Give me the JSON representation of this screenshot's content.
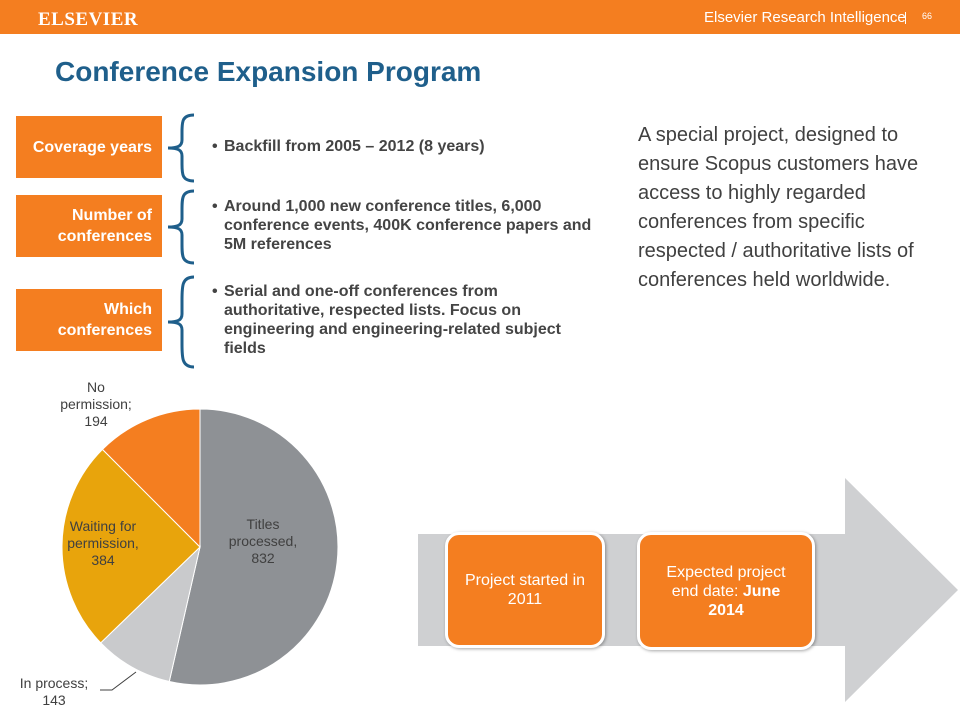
{
  "header": {
    "logo": "ELSEVIER",
    "brand": "Elsevier Research Intelligence",
    "page_number": "66"
  },
  "slide": {
    "title": "Conference Expansion Program",
    "rows": [
      {
        "label": "Coverage years",
        "bullet": "Backfill from 2005 – 2012 (8 years)"
      },
      {
        "label": "Number of conferences",
        "bullet": "Around 1,000 new conference titles, 6,000 conference events, 400K conference papers and 5M references"
      },
      {
        "label": "Which conferences",
        "bullet": "Serial and one-off conferences from authoritative, respected lists. Focus on engineering and engineering-related subject fields"
      }
    ],
    "description": "A special project, designed to ensure Scopus customers have access to highly regarded conferences from specific respected / authoritative lists of conferences held worldwide.",
    "bullet_char": "•"
  },
  "chart_data": {
    "type": "pie",
    "slices": [
      {
        "label": "Titles processed",
        "value": 832,
        "color": "#8e9195"
      },
      {
        "label": "In process",
        "value": 143,
        "color": "#c9cacc"
      },
      {
        "label": "Waiting for permission",
        "value": 384,
        "color": "#e8a40c"
      },
      {
        "label": "No permission",
        "value": 194,
        "color": "#f47e20"
      }
    ],
    "labels_text": {
      "titles": [
        "Titles",
        "processed,",
        "832"
      ],
      "in_process": [
        "In process;",
        "143"
      ],
      "waiting": [
        "Waiting for",
        "permission,",
        "384"
      ],
      "no_permission": [
        "No",
        "permission;",
        "194"
      ]
    }
  },
  "timeline": {
    "milestone1": "Project started in 2011",
    "milestone2_prefix": "Expected project end date: ",
    "milestone2_bold": "June 2014"
  },
  "colors": {
    "accent": "#f47e20",
    "title": "#1f5f8b",
    "brace": "#1f5f8b",
    "arrow": "#cfd0d2"
  }
}
